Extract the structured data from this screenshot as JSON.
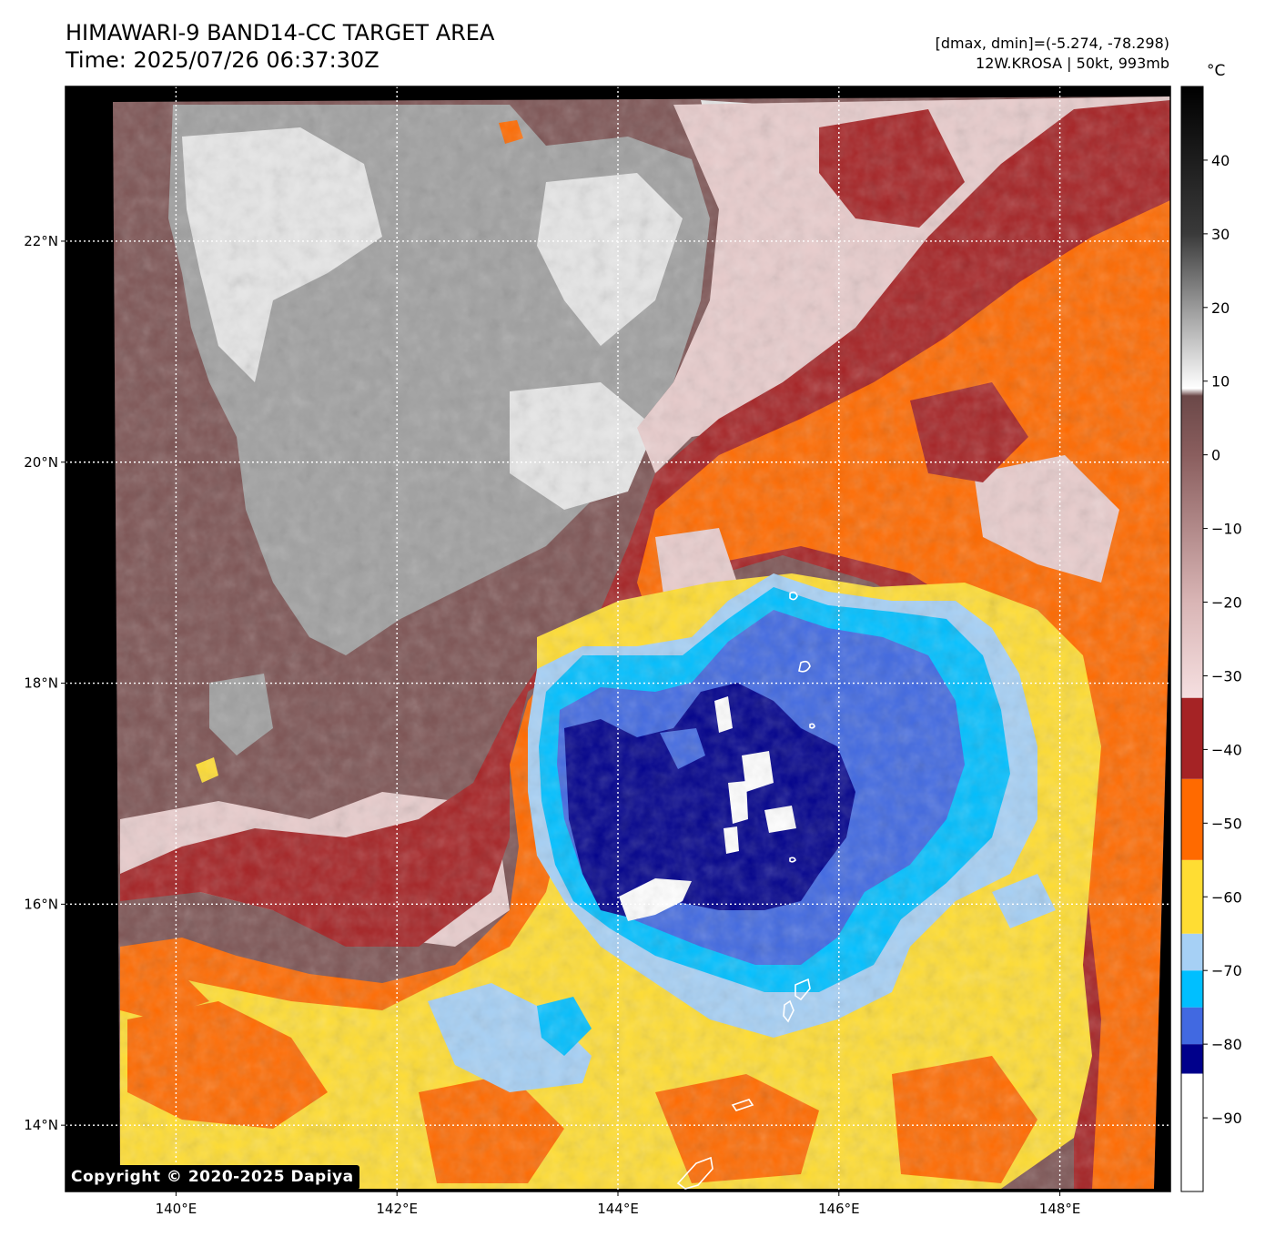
{
  "header": {
    "title_line1": "HIMAWARI-9 BAND14-CC TARGET AREA",
    "title_line2": "Time: 2025/07/26 06:37:30Z",
    "info_line1": "[dmax, dmin]=(-5.274, -78.298)",
    "info_line2": "12W.KROSA | 50kt, 993mb"
  },
  "colorbar": {
    "unit": "°C",
    "ticks": [
      "40",
      "30",
      "20",
      "10",
      "0",
      "−10",
      "−20",
      "−30",
      "−40",
      "−50",
      "−60",
      "−70",
      "−80",
      "−90"
    ],
    "tick_values": [
      40,
      30,
      20,
      10,
      0,
      -10,
      -20,
      -30,
      -40,
      -50,
      -60,
      -70,
      -80,
      -90
    ],
    "range": [
      -100,
      50
    ],
    "bands": [
      {
        "from": -100,
        "to": -84,
        "color": "#ffffff"
      },
      {
        "from": -84,
        "to": -80,
        "color": "#00008b"
      },
      {
        "from": -80,
        "to": -75,
        "color": "#4169e1"
      },
      {
        "from": -75,
        "to": -70,
        "color": "#00bfff"
      },
      {
        "from": -70,
        "to": -65,
        "color": "#a6d0f5"
      },
      {
        "from": -65,
        "to": -55,
        "color": "#ffdd33"
      },
      {
        "from": -55,
        "to": -44,
        "color": "#ff6a00"
      },
      {
        "from": -44,
        "to": -33,
        "color": "#a52325"
      }
    ],
    "gradient_stops": [
      {
        "value": -33,
        "color": "#f5dfe0"
      },
      {
        "value": -20,
        "color": "#d9b5b5"
      },
      {
        "value": 0,
        "color": "#8a5e5e"
      },
      {
        "value": 8,
        "color": "#6b4848"
      },
      {
        "value": 9,
        "color": "#ffffff"
      },
      {
        "value": 20,
        "color": "#9a9a9a"
      },
      {
        "value": 30,
        "color": "#3a3a3a"
      },
      {
        "value": 50,
        "color": "#000000"
      }
    ]
  },
  "map": {
    "lon_range": [
      139.0,
      149.0
    ],
    "lat_range": [
      13.4,
      23.4
    ],
    "lon_ticks": [
      140,
      142,
      144,
      146,
      148
    ],
    "lon_tick_labels": [
      "140°E",
      "142°E",
      "144°E",
      "146°E",
      "148°E"
    ],
    "lat_ticks": [
      14,
      16,
      18,
      20,
      22
    ],
    "lat_tick_labels": [
      "14°N",
      "16°N",
      "18°N",
      "20°N",
      "22°N"
    ],
    "storm_name": "12W.KROSA",
    "colors": {
      "outside": "#000000",
      "clear_warm": "#7d5454",
      "cloud_gray": "#a0a0a0",
      "cloud_light": "#e6e6e6",
      "pink": "#e8cccc",
      "dark_red": "#a52325",
      "orange": "#ff6a00",
      "yellow": "#ffdd33",
      "light_blue": "#a6d0f5",
      "cyan": "#00bfff",
      "royal": "#4169e1",
      "navy": "#00008b",
      "white": "#ffffff"
    }
  },
  "footer": {
    "copyright": "Copyright © 2020-2025 Dapiya"
  }
}
